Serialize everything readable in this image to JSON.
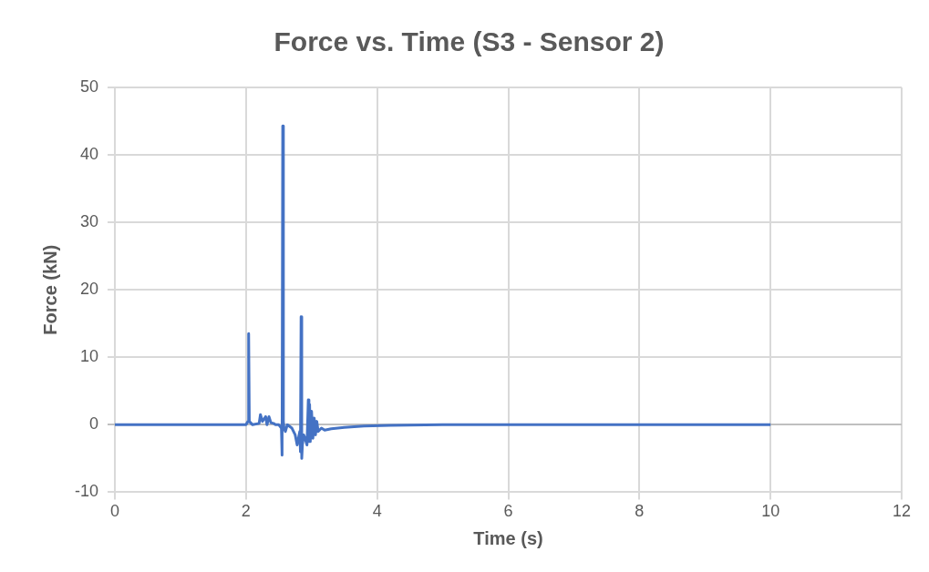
{
  "chart_data": {
    "type": "line",
    "title": "Force vs. Time (S3 - Sensor 2)",
    "xlabel": "Time (s)",
    "ylabel": "Force (kN)",
    "xlim": [
      0,
      12
    ],
    "xticks": [
      0,
      2,
      4,
      6,
      8,
      10,
      12
    ],
    "ylim": [
      -10,
      50
    ],
    "yticks": [
      -10,
      0,
      10,
      20,
      30,
      40,
      50
    ],
    "grid": true,
    "legend": false,
    "marker": "none",
    "line_style": "solid",
    "series": [
      {
        "color": "#4472c4",
        "x": [
          0,
          2.0,
          2.03,
          2.04,
          2.05,
          2.07,
          2.1,
          2.2,
          2.22,
          2.25,
          2.3,
          2.32,
          2.35,
          2.38,
          2.42,
          2.45,
          2.5,
          2.54,
          2.55,
          2.56,
          2.57,
          2.58,
          2.6,
          2.63,
          2.7,
          2.75,
          2.78,
          2.8,
          2.82,
          2.83,
          2.84,
          2.85,
          2.86,
          2.88,
          2.9,
          2.93,
          2.95,
          2.96,
          2.97,
          2.98,
          3.0,
          3.02,
          3.04,
          3.06,
          3.08,
          3.1,
          3.15,
          3.2,
          3.3,
          3.5,
          3.8,
          4.2,
          5,
          6,
          7,
          8,
          9,
          10
        ],
        "values": [
          0,
          0,
          0.5,
          13.5,
          0.5,
          0.3,
          0,
          0.2,
          1.5,
          0.5,
          1.2,
          0,
          1.2,
          0.3,
          0.2,
          0,
          0,
          -0.5,
          -4.5,
          44.3,
          0.5,
          -0.5,
          -1,
          0,
          -0.5,
          -1.5,
          -3,
          -2,
          -1,
          -4,
          16,
          -5,
          -3,
          -1.5,
          -2,
          -3,
          3.7,
          -2.5,
          3,
          -2.5,
          2,
          -2,
          1,
          -1.5,
          0.5,
          -1,
          -0.5,
          -0.8,
          -0.6,
          -0.4,
          -0.2,
          -0.1,
          0,
          0,
          0,
          0,
          0,
          0
        ]
      }
    ]
  }
}
